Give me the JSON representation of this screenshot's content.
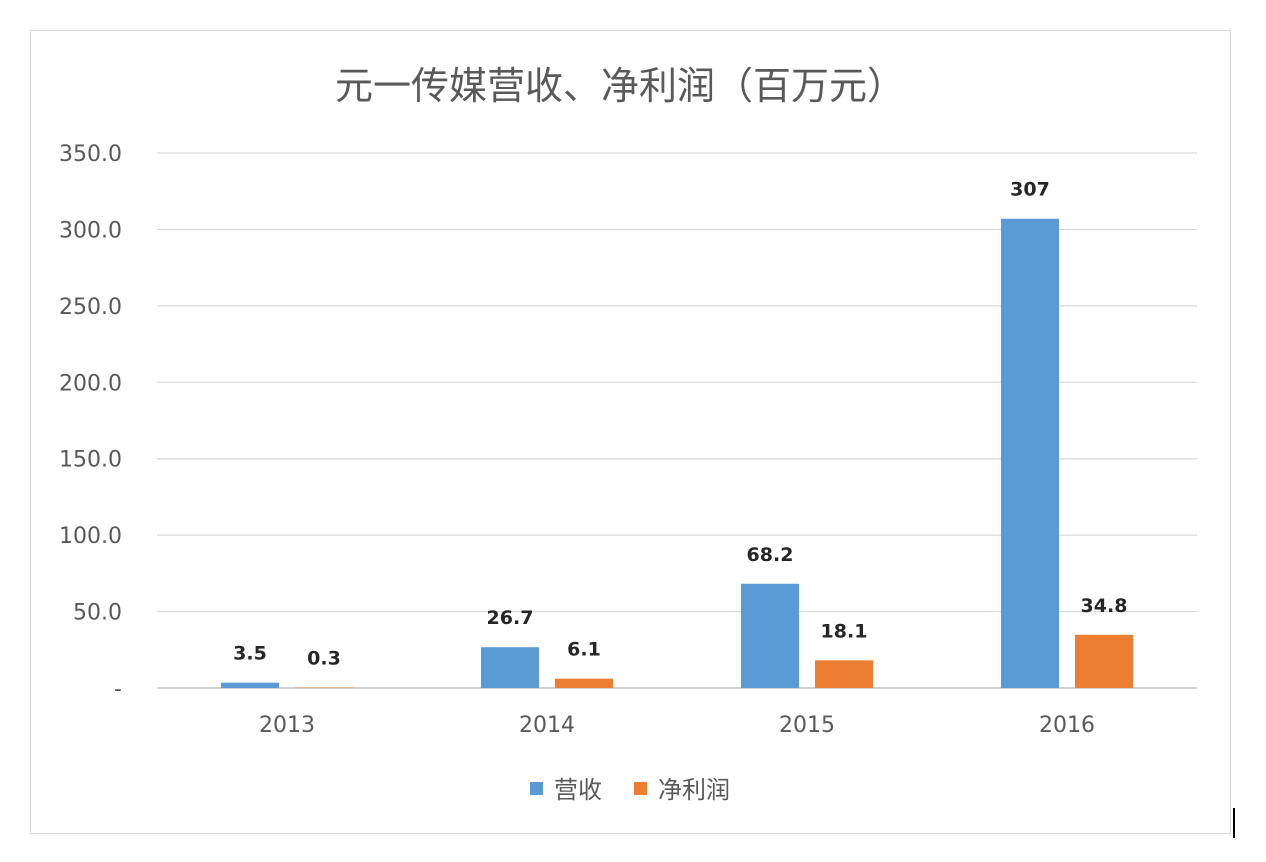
{
  "chart_data": {
    "type": "bar",
    "title": "元一传媒营收、净利润（百万元）",
    "categories": [
      "2013",
      "2014",
      "2015",
      "2016"
    ],
    "series": [
      {
        "name": "营收",
        "values": [
          3.5,
          26.7,
          68.2,
          307
        ],
        "labels": [
          "3.5",
          "26.7",
          "68.2",
          "307"
        ],
        "color": "#5B9BD5"
      },
      {
        "name": "净利润",
        "values": [
          0.3,
          6.1,
          18.1,
          34.8
        ],
        "labels": [
          "0.3",
          "6.1",
          "18.1",
          "34.8"
        ],
        "color": "#ED7D31"
      }
    ],
    "ylim": [
      0,
      350
    ],
    "yticks": [
      0,
      50,
      100,
      150,
      200,
      250,
      300,
      350
    ],
    "ytick_labels": [
      "-",
      "50.0",
      "100.0",
      "150.0",
      "200.0",
      "250.0",
      "300.0",
      "350.0"
    ],
    "grid": true,
    "legend_position": "bottom"
  }
}
